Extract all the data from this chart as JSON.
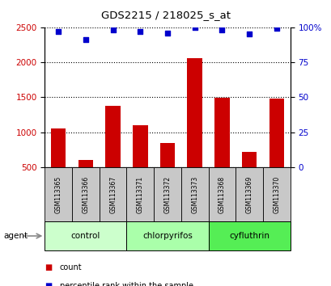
{
  "title": "GDS2215 / 218025_s_at",
  "samples": [
    "GSM113365",
    "GSM113366",
    "GSM113367",
    "GSM113371",
    "GSM113372",
    "GSM113373",
    "GSM113368",
    "GSM113369",
    "GSM113370"
  ],
  "counts": [
    1050,
    600,
    1380,
    1100,
    850,
    2060,
    1490,
    720,
    1480
  ],
  "percentiles": [
    97,
    91,
    98,
    97,
    96,
    100,
    98,
    95,
    99
  ],
  "groups": [
    {
      "label": "control",
      "start": 0,
      "end": 3,
      "color": "#ccffcc"
    },
    {
      "label": "chlorpyrifos",
      "start": 3,
      "end": 6,
      "color": "#aaffaa"
    },
    {
      "label": "cyfluthrin",
      "start": 6,
      "end": 9,
      "color": "#55ee55"
    }
  ],
  "bar_color": "#cc0000",
  "dot_color": "#0000cc",
  "left_tick_color": "#cc0000",
  "right_tick_color": "#0000cc",
  "ylim_left": [
    500,
    2500
  ],
  "ylim_right": [
    0,
    100
  ],
  "yticks_left": [
    500,
    1000,
    1500,
    2000,
    2500
  ],
  "yticks_right": [
    0,
    25,
    50,
    75,
    100
  ],
  "background_color": "#ffffff",
  "grid_color": "#000000",
  "sample_label_bg": "#c8c8c8",
  "agent_label": "agent",
  "legend_count_label": "count",
  "legend_pct_label": "percentile rank within the sample"
}
